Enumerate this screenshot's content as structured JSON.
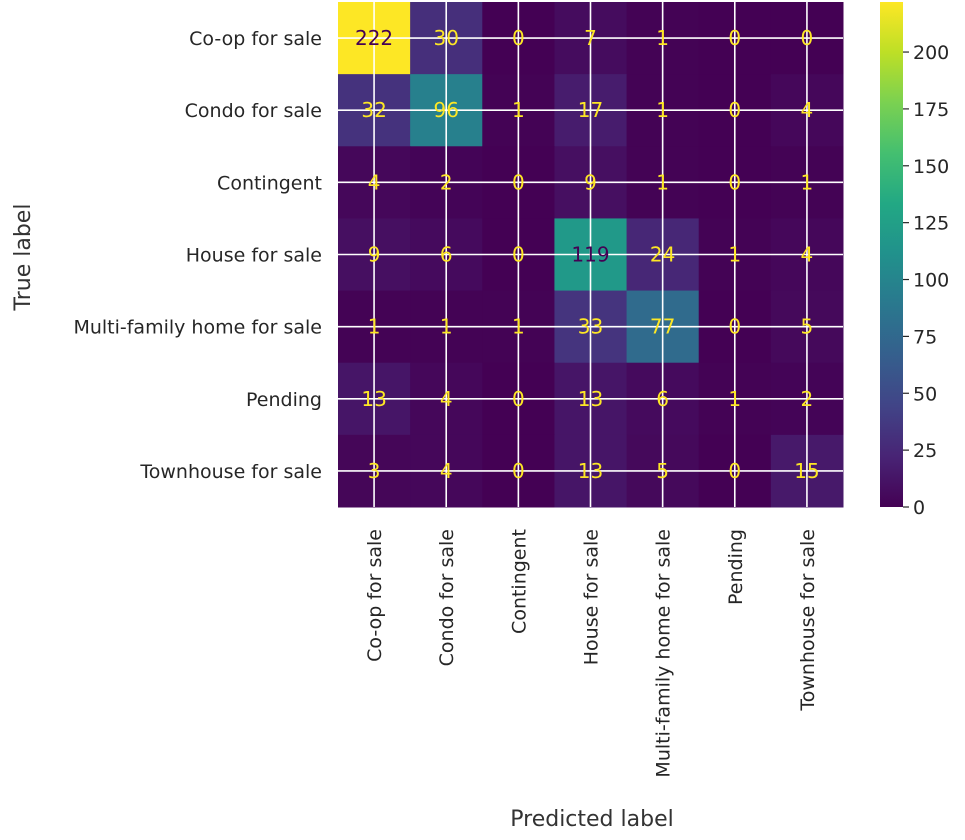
{
  "chart_data": {
    "type": "heatmap",
    "title": "",
    "xlabel": "Predicted label",
    "ylabel": "True label",
    "x_categories": [
      "Co-op for sale",
      "Condo for sale",
      "Contingent",
      "House for sale",
      "Multi-family home for sale",
      "Pending",
      "Townhouse for sale"
    ],
    "y_categories": [
      "Co-op for sale",
      "Condo for sale",
      "Contingent",
      "House for sale",
      "Multi-family home for sale",
      "Pending",
      "Townhouse for sale"
    ],
    "values": [
      [
        222,
        30,
        0,
        7,
        1,
        0,
        0
      ],
      [
        32,
        96,
        1,
        17,
        1,
        0,
        4
      ],
      [
        4,
        2,
        0,
        9,
        1,
        0,
        1
      ],
      [
        9,
        6,
        0,
        119,
        24,
        1,
        4
      ],
      [
        1,
        1,
        1,
        33,
        77,
        0,
        5
      ],
      [
        13,
        4,
        0,
        13,
        6,
        1,
        2
      ],
      [
        3,
        4,
        0,
        13,
        5,
        0,
        15
      ]
    ],
    "colormap": "viridis",
    "color_range": [
      0,
      222
    ],
    "colorbar_ticks": [
      0,
      25,
      50,
      75,
      100,
      125,
      150,
      175,
      200
    ],
    "grid": true,
    "annotation_colors": {
      "light": "#fde725",
      "dark": "#440154"
    }
  }
}
